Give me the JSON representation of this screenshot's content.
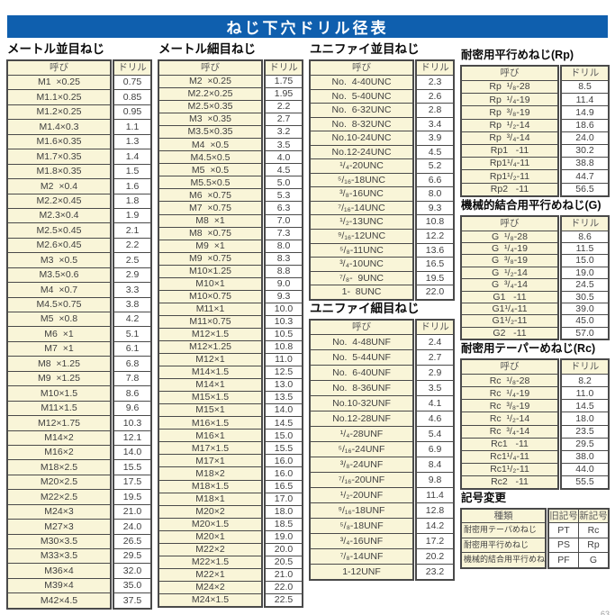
{
  "page": {
    "title": "ねじ下穴ドリル径表",
    "page_marker": "63"
  },
  "colors": {
    "accent-blue": "#0f5fae",
    "cell-yellow": "#f9f5d8",
    "border-dark": "#4a4a4a"
  },
  "tables": {
    "metric_coarse": {
      "title": "メートル並目ねじ",
      "headers": [
        "呼び",
        "ドリル"
      ],
      "rows": [
        [
          "M1  ×0.25",
          "0.75"
        ],
        [
          "M1.1×0.25",
          "0.85"
        ],
        [
          "M1.2×0.25",
          "0.95"
        ],
        [
          "M1.4×0.3",
          "1.1"
        ],
        [
          "M1.6×0.35",
          "1.3"
        ],
        [
          "M1.7×0.35",
          "1.4"
        ],
        [
          "M1.8×0.35",
          "1.5"
        ],
        [
          "M2  ×0.4",
          "1.6"
        ],
        [
          "M2.2×0.45",
          "1.8"
        ],
        [
          "M2.3×0.4",
          "1.9"
        ],
        [
          "M2.5×0.45",
          "2.1"
        ],
        [
          "M2.6×0.45",
          "2.2"
        ],
        [
          "M3  ×0.5",
          "2.5"
        ],
        [
          "M3.5×0.6",
          "2.9"
        ],
        [
          "M4  ×0.7",
          "3.3"
        ],
        [
          "M4.5×0.75",
          "3.8"
        ],
        [
          "M5  ×0.8",
          "4.2"
        ],
        [
          "M6  ×1",
          "5.1"
        ],
        [
          "M7  ×1",
          "6.1"
        ],
        [
          "M8  ×1.25",
          "6.8"
        ],
        [
          "M9  ×1.25",
          "7.8"
        ],
        [
          "M10×1.5",
          "8.6"
        ],
        [
          "M11×1.5",
          "9.6"
        ],
        [
          "M12×1.75",
          "10.3"
        ],
        [
          "M14×2",
          "12.1"
        ],
        [
          "M16×2",
          "14.0"
        ],
        [
          "M18×2.5",
          "15.5"
        ],
        [
          "M20×2.5",
          "17.5"
        ],
        [
          "M22×2.5",
          "19.5"
        ],
        [
          "M24×3",
          "21.0"
        ],
        [
          "M27×3",
          "24.0"
        ],
        [
          "M30×3.5",
          "26.5"
        ],
        [
          "M33×3.5",
          "29.5"
        ],
        [
          "M36×4",
          "32.0"
        ],
        [
          "M39×4",
          "35.0"
        ],
        [
          "M42×4.5",
          "37.5"
        ]
      ]
    },
    "metric_fine": {
      "title": "メートル細目ねじ",
      "headers": [
        "呼び",
        "ドリル"
      ],
      "rows": [
        [
          "M2  ×0.25",
          "1.75"
        ],
        [
          "M2.2×0.25",
          "1.95"
        ],
        [
          "M2.5×0.35",
          "2.2"
        ],
        [
          "M3  ×0.35",
          "2.7"
        ],
        [
          "M3.5×0.35",
          "3.2"
        ],
        [
          "M4  ×0.5",
          "3.5"
        ],
        [
          "M4.5×0.5",
          "4.0"
        ],
        [
          "M5  ×0.5",
          "4.5"
        ],
        [
          "M5.5×0.5",
          "5.0"
        ],
        [
          "M6  ×0.75",
          "5.3"
        ],
        [
          "M7  ×0.75",
          "6.3"
        ],
        [
          "M8  ×1",
          "7.0"
        ],
        [
          "M8  ×0.75",
          "7.3"
        ],
        [
          "M9  ×1",
          "8.0"
        ],
        [
          "M9  ×0.75",
          "8.3"
        ],
        [
          "M10×1.25",
          "8.8"
        ],
        [
          "M10×1",
          "9.0"
        ],
        [
          "M10×0.75",
          "9.3"
        ],
        [
          "M11×1",
          "10.0"
        ],
        [
          "M11×0.75",
          "10.3"
        ],
        [
          "M12×1.5",
          "10.5"
        ],
        [
          "M12×1.25",
          "10.8"
        ],
        [
          "M12×1",
          "11.0"
        ],
        [
          "M14×1.5",
          "12.5"
        ],
        [
          "M14×1",
          "13.0"
        ],
        [
          "M15×1.5",
          "13.5"
        ],
        [
          "M15×1",
          "14.0"
        ],
        [
          "M16×1.5",
          "14.5"
        ],
        [
          "M16×1",
          "15.0"
        ],
        [
          "M17×1.5",
          "15.5"
        ],
        [
          "M17×1",
          "16.0"
        ],
        [
          "M18×2",
          "16.0"
        ],
        [
          "M18×1.5",
          "16.5"
        ],
        [
          "M18×1",
          "17.0"
        ],
        [
          "M20×2",
          "18.0"
        ],
        [
          "M20×1.5",
          "18.5"
        ],
        [
          "M20×1",
          "19.0"
        ],
        [
          "M22×2",
          "20.0"
        ],
        [
          "M22×1.5",
          "20.5"
        ],
        [
          "M22×1",
          "21.0"
        ],
        [
          "M24×2",
          "22.0"
        ],
        [
          "M24×1.5",
          "22.5"
        ]
      ]
    },
    "unified_coarse": {
      "title": "ユニファイ並目ねじ",
      "headers": [
        "呼び",
        "ドリル"
      ],
      "rows": [
        [
          "No.  4-40UNC",
          "2.3"
        ],
        [
          "No.  5-40UNC",
          "2.6"
        ],
        [
          "No.  6-32UNC",
          "2.8"
        ],
        [
          "No.  8-32UNC",
          "3.4"
        ],
        [
          "No.10-24UNC",
          "3.9"
        ],
        [
          "No.12-24UNC",
          "4.5"
        ],
        [
          "¹/₄-20UNC",
          "5.2"
        ],
        [
          "⁵/₁₆-18UNC",
          "6.6"
        ],
        [
          "³/₈-16UNC",
          "8.0"
        ],
        [
          "⁷/₁₆-14UNC",
          "9.3"
        ],
        [
          "¹/₂-13UNC",
          "10.8"
        ],
        [
          "⁹/₁₆-12UNC",
          "12.2"
        ],
        [
          "⁵/₈-11UNC",
          "13.6"
        ],
        [
          "³/₄-10UNC",
          "16.5"
        ],
        [
          "⁷/₈-  9UNC",
          "19.5"
        ],
        [
          "1-  8UNC",
          "22.0"
        ]
      ]
    },
    "unified_fine": {
      "title": "ユニファイ細目ねじ",
      "headers": [
        "呼び",
        "ドリル"
      ],
      "rows": [
        [
          "No.  4-48UNF",
          "2.4"
        ],
        [
          "No.  5-44UNF",
          "2.7"
        ],
        [
          "No.  6-40UNF",
          "2.9"
        ],
        [
          "No.  8-36UNF",
          "3.5"
        ],
        [
          "No.10-32UNF",
          "4.1"
        ],
        [
          "No.12-28UNF",
          "4.6"
        ],
        [
          "¹/₄-28UNF",
          "5.4"
        ],
        [
          "⁵/₁₆-24UNF",
          "6.9"
        ],
        [
          "³/₈-24UNF",
          "8.4"
        ],
        [
          "⁷/₁₆-20UNF",
          "9.8"
        ],
        [
          "¹/₂-20UNF",
          "11.4"
        ],
        [
          "⁹/₁₆-18UNF",
          "12.8"
        ],
        [
          "⁵/₈-18UNF",
          "14.2"
        ],
        [
          "³/₄-16UNF",
          "17.2"
        ],
        [
          "⁷/₈-14UNF",
          "20.2"
        ],
        [
          "1-12UNF",
          "23.2"
        ]
      ]
    },
    "rp": {
      "title": "耐密用平行めねじ(Rp)",
      "headers": [
        "呼び",
        "ドリル"
      ],
      "rows": [
        [
          "Rp  ¹/₈-28",
          "8.5"
        ],
        [
          "Rp  ¹/₄-19",
          "11.4"
        ],
        [
          "Rp  ³/₈-19",
          "14.9"
        ],
        [
          "Rp  ¹/₂-14",
          "18.6"
        ],
        [
          "Rp  ³/₄-14",
          "24.0"
        ],
        [
          "Rp1   -11",
          "30.2"
        ],
        [
          "Rp1¹/₄-11",
          "38.8"
        ],
        [
          "Rp1¹/₂-11",
          "44.7"
        ],
        [
          "Rp2   -11",
          "56.5"
        ]
      ]
    },
    "g": {
      "title": "機械的結合用平行めねじ(G)",
      "headers": [
        "呼び",
        "ドリル"
      ],
      "rows": [
        [
          "G  ¹/₈-28",
          "8.6"
        ],
        [
          "G  ¹/₄-19",
          "11.5"
        ],
        [
          "G  ³/₈-19",
          "15.0"
        ],
        [
          "G  ¹/₂-14",
          "19.0"
        ],
        [
          "G  ³/₄-14",
          "24.5"
        ],
        [
          "G1   -11",
          "30.5"
        ],
        [
          "G1¹/₄-11",
          "39.0"
        ],
        [
          "G1¹/₂-11",
          "45.0"
        ],
        [
          "G2   -11",
          "57.0"
        ]
      ]
    },
    "rc": {
      "title": "耐密用テーパーめねじ(Rc)",
      "headers": [
        "呼び",
        "ドリル"
      ],
      "rows": [
        [
          "Rc  ¹/₈-28",
          "8.2"
        ],
        [
          "Rc  ¹/₄-19",
          "11.0"
        ],
        [
          "Rc  ³/₈-19",
          "14.5"
        ],
        [
          "Rc  ¹/₂-14",
          "18.0"
        ],
        [
          "Rc  ³/₄-14",
          "23.5"
        ],
        [
          "Rc1   -11",
          "29.5"
        ],
        [
          "Rc1¹/₄-11",
          "38.0"
        ],
        [
          "Rc1¹/₂-11",
          "44.0"
        ],
        [
          "Rc2   -11",
          "55.5"
        ]
      ]
    },
    "symbol_change": {
      "title": "記号変更",
      "headers": [
        "種類",
        "旧記号",
        "新記号"
      ],
      "rows": [
        [
          "耐密用テーパめねじ",
          "PT",
          "Rc"
        ],
        [
          "耐密用平行めねじ",
          "PS",
          "Rp"
        ],
        [
          "機械的結合用平行めねじ",
          "PF",
          "G"
        ]
      ]
    }
  }
}
